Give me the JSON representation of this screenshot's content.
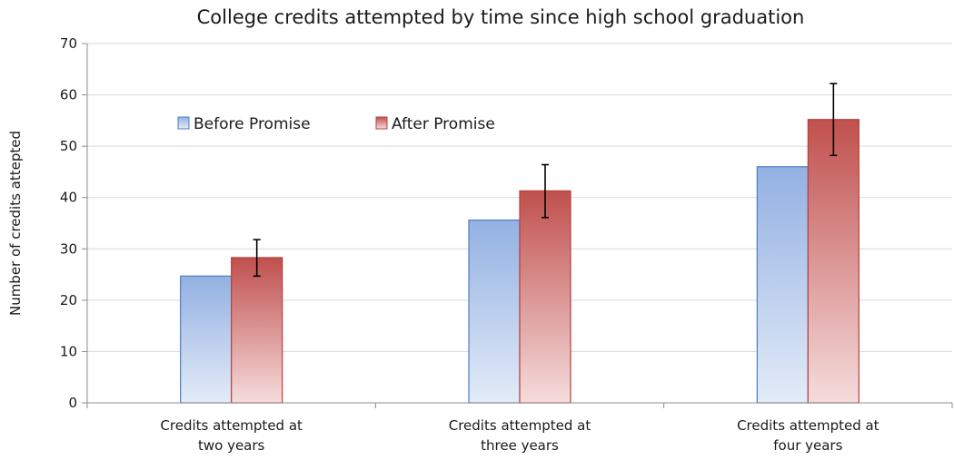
{
  "chart_data": {
    "type": "bar",
    "title": "College credits attempted by time since high school graduation",
    "ylabel": "Number of credits attepted",
    "xlabel": "",
    "ylim": [
      0,
      70
    ],
    "yticks": [
      0,
      10,
      20,
      30,
      40,
      50,
      60,
      70
    ],
    "grid": true,
    "legend_position": "top-left",
    "categories": [
      [
        "Credits attempted at",
        "two years"
      ],
      [
        "Credits attempted at",
        "three years"
      ],
      [
        "Credits attempted at",
        "four years"
      ]
    ],
    "series": [
      {
        "name": "Before Promise",
        "values": [
          24.7,
          35.6,
          46.0
        ],
        "color_top": "#93b1e2",
        "color_bottom": "#e3ebf8",
        "stroke": "#4f7dc2"
      },
      {
        "name": "After Promise",
        "values": [
          28.3,
          41.3,
          55.2
        ],
        "color_top": "#c0504d",
        "color_bottom": "#f5dcdc",
        "stroke": "#b8403d",
        "error": [
          [
            24.7,
            31.8
          ],
          [
            36.1,
            46.4
          ],
          [
            48.2,
            62.2
          ]
        ]
      }
    ]
  }
}
